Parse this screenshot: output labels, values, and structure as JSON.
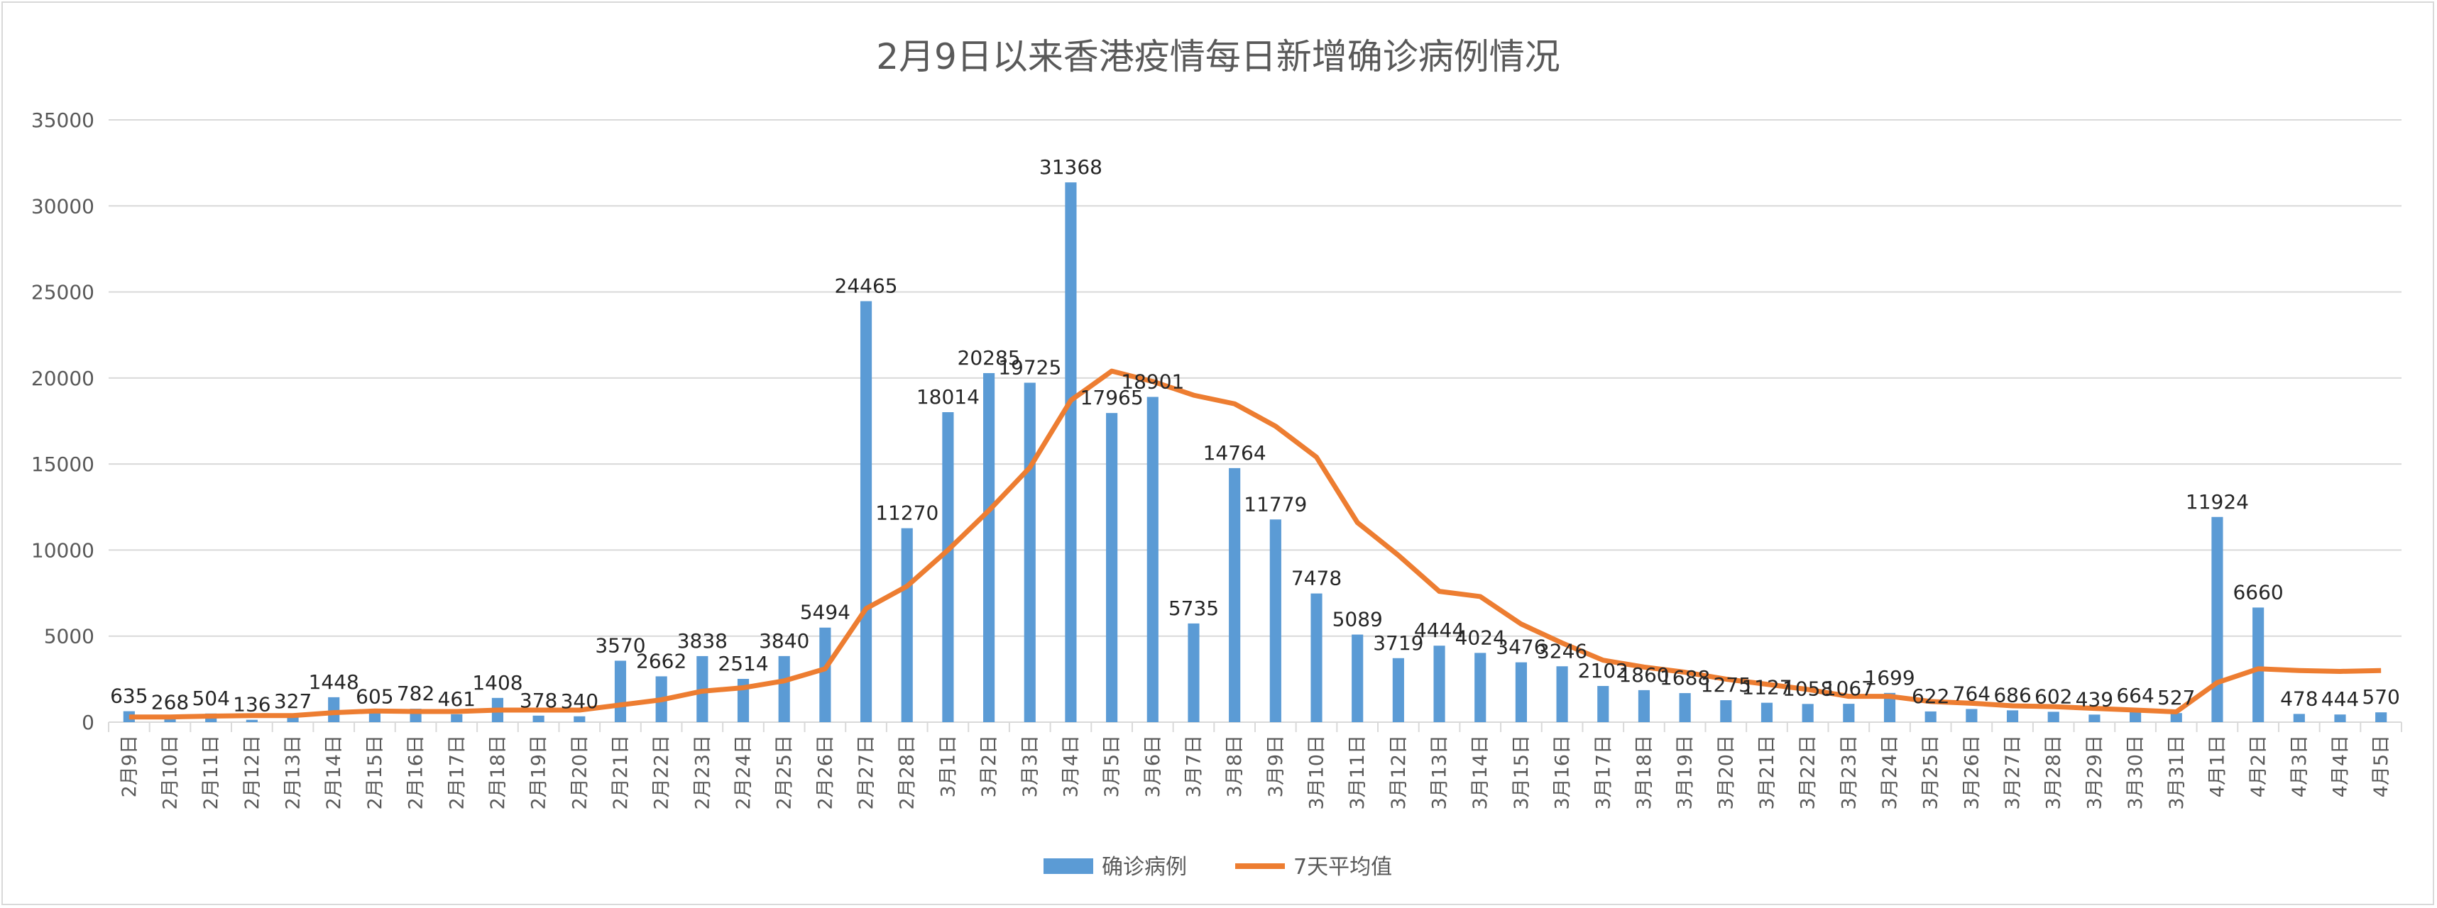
{
  "chart_data": {
    "type": "bar+line",
    "title": "2月9日以来香港疫情每日新增确诊病例情况",
    "xlabel": "",
    "ylabel": "",
    "ylim": [
      0,
      35000
    ],
    "yticks": [
      0,
      5000,
      10000,
      15000,
      20000,
      25000,
      30000,
      35000
    ],
    "grid": true,
    "legend_position": "bottom",
    "categories": [
      "2月9日",
      "2月10日",
      "2月11日",
      "2月12日",
      "2月13日",
      "2月14日",
      "2月15日",
      "2月16日",
      "2月17日",
      "2月18日",
      "2月19日",
      "2月20日",
      "2月21日",
      "2月22日",
      "2月23日",
      "2月24日",
      "2月25日",
      "2月26日",
      "2月27日",
      "2月28日",
      "3月1日",
      "3月2日",
      "3月3日",
      "3月4日",
      "3月5日",
      "3月6日",
      "3月7日",
      "3月8日",
      "3月9日",
      "3月10日",
      "3月11日",
      "3月12日",
      "3月13日",
      "3月14日",
      "3月15日",
      "3月16日",
      "3月17日",
      "3月18日",
      "3月19日",
      "3月20日",
      "3月21日",
      "3月22日",
      "3月23日",
      "3月24日",
      "3月25日",
      "3月26日",
      "3月27日",
      "3月28日",
      "3月29日",
      "3月30日",
      "3月31日",
      "4月1日",
      "4月2日",
      "4月3日",
      "4月4日",
      "4月5日"
    ],
    "series": [
      {
        "name": "确诊病例",
        "type": "bar",
        "color": "#5b9bd5",
        "values": [
          635,
          268,
          504,
          136,
          327,
          1448,
          605,
          782,
          461,
          1408,
          378,
          340,
          3570,
          2662,
          3838,
          2514,
          3840,
          5494,
          24465,
          11270,
          18014,
          20285,
          19725,
          31368,
          17965,
          18901,
          5735,
          14764,
          11779,
          7478,
          5089,
          3719,
          4444,
          4024,
          3476,
          3246,
          2102,
          1860,
          1688,
          1275,
          1127,
          1058,
          1067,
          1699,
          622,
          764,
          686,
          602,
          439,
          664,
          527,
          11924,
          6660,
          478,
          444,
          570
        ]
      },
      {
        "name": "7天平均值",
        "type": "line",
        "color": "#ed7d31",
        "values": [
          300,
          300,
          350,
          380,
          380,
          550,
          650,
          620,
          620,
          700,
          700,
          700,
          1000,
          1300,
          1800,
          2000,
          2400,
          3100,
          6600,
          7900,
          10000,
          12300,
          14800,
          18700,
          20400,
          19800,
          19000,
          18500,
          17200,
          15400,
          11600,
          9700,
          7600,
          7300,
          5700,
          4600,
          3600,
          3200,
          2900,
          2500,
          2200,
          1900,
          1500,
          1500,
          1200,
          1100,
          950,
          900,
          800,
          700,
          600,
          2300,
          3100,
          3000,
          2950,
          3000
        ]
      }
    ]
  }
}
